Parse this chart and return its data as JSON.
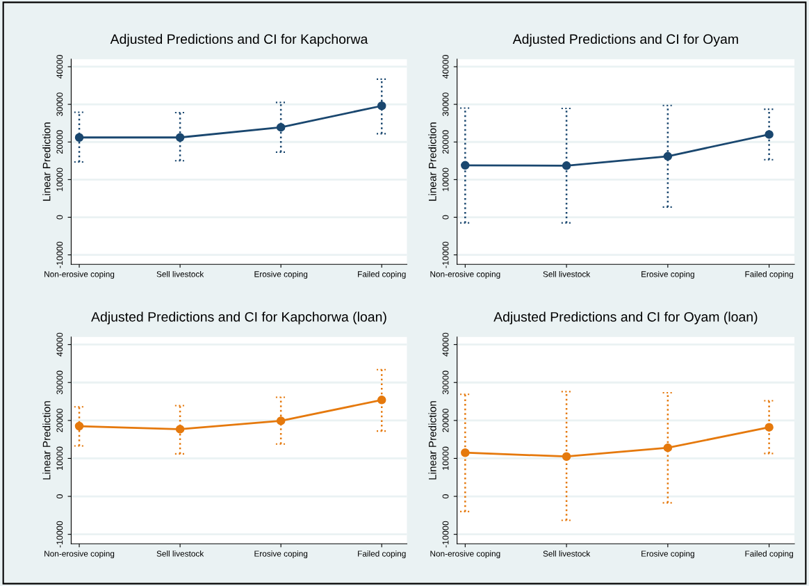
{
  "chart_data": [
    {
      "type": "line",
      "title": "Adjusted Predictions and CI for Kapchorwa",
      "ylabel": "Linear Prediction",
      "categories": [
        "Non-erosive coping",
        "Sell livestock",
        "Erosive coping",
        "Failed coping"
      ],
      "series": [
        {
          "color": "#1a476f",
          "values": [
            21200,
            21200,
            23900,
            29600
          ],
          "errors": [
            [
              14700,
              27900
            ],
            [
              15000,
              27800
            ],
            [
              17300,
              30500
            ],
            [
              22200,
              36700
            ]
          ]
        }
      ],
      "ylim": [
        -12500,
        42000
      ],
      "yticks": [
        -10000,
        0,
        10000,
        20000,
        30000,
        40000
      ],
      "grid": "y",
      "marker": "circle",
      "line_style": "solid"
    },
    {
      "type": "line",
      "title": "Adjusted Predictions and CI for Oyam",
      "ylabel": "Linear Prediction",
      "categories": [
        "Non-erosive coping",
        "Sell livestock",
        "Erosive coping",
        "Failed coping"
      ],
      "series": [
        {
          "color": "#1a476f",
          "values": [
            13800,
            13700,
            16200,
            22000
          ],
          "errors": [
            [
              -1500,
              29000
            ],
            [
              -1500,
              28900
            ],
            [
              2700,
              29700
            ],
            [
              15300,
              28700
            ]
          ]
        }
      ],
      "ylim": [
        -12500,
        42000
      ],
      "yticks": [
        -10000,
        0,
        10000,
        20000,
        30000,
        40000
      ],
      "grid": "y",
      "marker": "circle",
      "line_style": "solid"
    },
    {
      "type": "line",
      "title": "Adjusted Predictions and CI for Kapchorwa (loan)",
      "ylabel": "Linear Prediction",
      "categories": [
        "Non-erosive coping",
        "Sell livestock",
        "Erosive coping",
        "Failed coping"
      ],
      "series": [
        {
          "color": "#e5790d",
          "values": [
            18500,
            17700,
            19900,
            25400
          ],
          "errors": [
            [
              13300,
              23600
            ],
            [
              11200,
              23900
            ],
            [
              13800,
              26100
            ],
            [
              17200,
              33400
            ]
          ]
        }
      ],
      "ylim": [
        -12500,
        42000
      ],
      "yticks": [
        -10000,
        0,
        10000,
        20000,
        30000,
        40000
      ],
      "grid": "y",
      "marker": "circle",
      "line_style": "solid"
    },
    {
      "type": "line",
      "title": "Adjusted Predictions and CI for Oyam (loan)",
      "ylabel": "Linear Prediction",
      "categories": [
        "Non-erosive coping",
        "Sell livestock",
        "Erosive coping",
        "Failed coping"
      ],
      "series": [
        {
          "color": "#e5790d",
          "values": [
            11500,
            10500,
            12800,
            18200
          ],
          "errors": [
            [
              -4000,
              26900
            ],
            [
              -6300,
              27600
            ],
            [
              -1700,
              27300
            ],
            [
              11300,
              25200
            ]
          ]
        }
      ],
      "ylim": [
        -12500,
        42000
      ],
      "yticks": [
        -10000,
        0,
        10000,
        20000,
        30000,
        40000
      ],
      "grid": "y",
      "marker": "circle",
      "line_style": "solid"
    }
  ]
}
